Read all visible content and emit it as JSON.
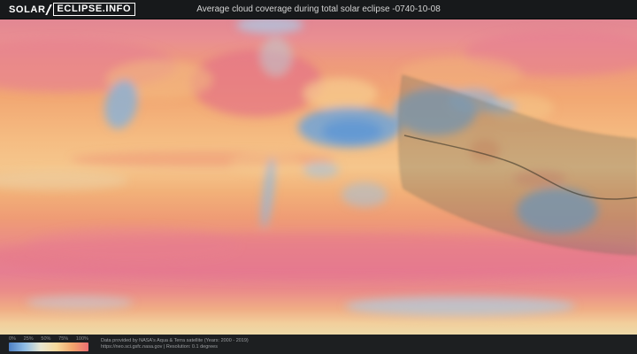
{
  "header": {
    "logo_prefix": "SOLAR",
    "logo_suffix": "ECLIPSE.INFO",
    "title": "Average cloud coverage during total solar eclipse -0740-10-08"
  },
  "map": {
    "kind": "world cloud coverage heatmap, equirectangular",
    "eclipse_overlay": "grey shadow band with dark central eclipse path curving across the Middle East, South Asia and Australia",
    "palette": {
      "low_cloud_blue": "#5e96d4",
      "mid_cloud_yellow": "#f6cd8d",
      "high_cloud_pink": "#e5718a",
      "shadow_band_grey": "#6f6d5c"
    }
  },
  "legend": {
    "ticks": [
      "0%",
      "25%",
      "50%",
      "75%",
      "100%"
    ],
    "gradient": [
      "#4d7fc3",
      "#8fbce4",
      "#e8e6d0",
      "#f7d99b",
      "#f2a56c",
      "#ea6f72"
    ]
  },
  "footer": {
    "attribution_line1": "Data provided by NASA's Aqua & Terra satellite (Years: 2000 - 2019)",
    "attribution_line2": "https://neo.sci.gsfc.nasa.gov | Resolution: 0.1 degrees"
  }
}
